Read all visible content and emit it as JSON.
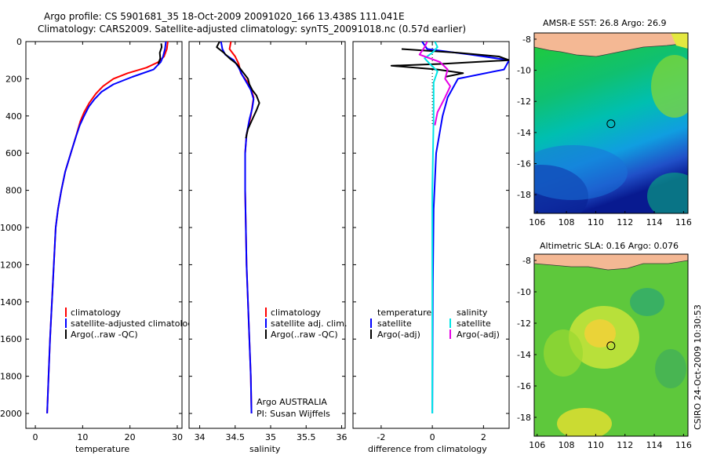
{
  "header": {
    "line1": "Argo profile: CS 5901681_35 18-Oct-2009 20091020_166 13.438S 111.041E",
    "line2": "Climatology: CARS2009. Satellite-adjusted climatology: synTS_20091018.nc (0.57d earlier)"
  },
  "footer_stamp": "CSIRO 24-Oct-2009 10:30:53",
  "colors": {
    "climatology": "#ff0000",
    "satellite": "#0000ff",
    "argo": "#000000",
    "sat_sal": "#00e5e5",
    "argo_sal": "#e600e6"
  },
  "chart_data": [
    {
      "type": "line",
      "id": "temperature",
      "xlabel": "temperature",
      "ylabel": "",
      "xlim": [
        -2,
        31
      ],
      "ylim": [
        2080,
        0
      ],
      "xticks": [
        "0",
        "10",
        "20",
        "30"
      ],
      "xtick_values": [
        0,
        10,
        20,
        30
      ],
      "yticks": [
        "0",
        "200",
        "400",
        "600",
        "800",
        "1000",
        "1200",
        "1400",
        "1600",
        "1800",
        "2000"
      ],
      "ytick_values": [
        0,
        200,
        400,
        600,
        800,
        1000,
        1200,
        1400,
        1600,
        1800,
        2000
      ],
      "legend": [
        "climatology",
        "satellite-adjusted climatology",
        "Argo(..raw -QC)"
      ],
      "series": [
        {
          "name": "climatology",
          "color": "#ff0000",
          "points": [
            [
              28.0,
              0
            ],
            [
              27.8,
              40
            ],
            [
              27.2,
              80
            ],
            [
              26.0,
              110
            ],
            [
              23.5,
              140
            ],
            [
              19.5,
              170
            ],
            [
              16.5,
              200
            ],
            [
              14.3,
              240
            ],
            [
              12.8,
              280
            ],
            [
              11.4,
              330
            ],
            [
              10.3,
              380
            ],
            [
              9.5,
              430
            ],
            [
              8.7,
              500
            ],
            [
              7.5,
              600
            ],
            [
              6.3,
              700
            ],
            [
              5.5,
              800
            ],
            [
              4.8,
              900
            ],
            [
              4.3,
              1000
            ],
            [
              3.9,
              1200
            ],
            [
              3.5,
              1400
            ],
            [
              3.1,
              1600
            ],
            [
              2.8,
              1800
            ],
            [
              2.5,
              2000
            ]
          ]
        },
        {
          "name": "satellite-adjusted climatology",
          "color": "#0000ff",
          "points": [
            [
              27.6,
              0
            ],
            [
              27.4,
              40
            ],
            [
              27.0,
              80
            ],
            [
              26.5,
              110
            ],
            [
              25.0,
              150
            ],
            [
              20.5,
              190
            ],
            [
              16.5,
              230
            ],
            [
              14.0,
              270
            ],
            [
              12.5,
              310
            ],
            [
              11.3,
              350
            ],
            [
              10.3,
              400
            ],
            [
              9.4,
              450
            ],
            [
              8.6,
              510
            ],
            [
              7.5,
              600
            ],
            [
              6.3,
              700
            ],
            [
              5.5,
              800
            ],
            [
              4.8,
              900
            ],
            [
              4.3,
              1000
            ],
            [
              3.9,
              1200
            ],
            [
              3.5,
              1400
            ],
            [
              3.1,
              1600
            ],
            [
              2.8,
              1800
            ],
            [
              2.5,
              2000
            ]
          ]
        },
        {
          "name": "Argo(..raw -QC)",
          "color": "#000000",
          "points": [
            [
              26.6,
              10
            ],
            [
              26.7,
              30
            ],
            [
              26.3,
              60
            ],
            [
              26.4,
              90
            ],
            [
              26.0,
              120
            ]
          ]
        }
      ]
    },
    {
      "type": "line",
      "id": "salinity",
      "xlabel": "salinity",
      "xlim": [
        33.85,
        36.05
      ],
      "ylim": [
        2080,
        0
      ],
      "xticks": [
        "34",
        "34.5",
        "35",
        "35.5",
        "36"
      ],
      "xtick_values": [
        34,
        34.5,
        35,
        35.5,
        36
      ],
      "legend": [
        "climatology",
        "satellite adj. clim.",
        "Argo(..raw -QC)"
      ],
      "annotations": [
        "Argo AUSTRALIA",
        "PI: Susan Wijffels"
      ],
      "series": [
        {
          "name": "climatology",
          "color": "#ff0000",
          "points": [
            [
              34.44,
              0
            ],
            [
              34.42,
              40
            ],
            [
              34.5,
              80
            ],
            [
              34.55,
              120
            ],
            [
              34.58,
              170
            ],
            [
              34.66,
              210
            ],
            [
              34.72,
              250
            ],
            [
              34.76,
              300
            ],
            [
              34.74,
              350
            ],
            [
              34.72,
              400
            ],
            [
              34.66,
              500
            ],
            [
              34.64,
              600
            ],
            [
              34.64,
              800
            ],
            [
              34.65,
              1000
            ],
            [
              34.66,
              1200
            ],
            [
              34.68,
              1400
            ],
            [
              34.7,
              1600
            ],
            [
              34.72,
              1800
            ],
            [
              34.73,
              2000
            ]
          ]
        },
        {
          "name": "satellite adj. clim.",
          "color": "#0000ff",
          "points": [
            [
              34.3,
              0
            ],
            [
              34.32,
              40
            ],
            [
              34.36,
              70
            ],
            [
              34.48,
              100
            ],
            [
              34.55,
              140
            ],
            [
              34.6,
              180
            ],
            [
              34.66,
              220
            ],
            [
              34.72,
              260
            ],
            [
              34.76,
              310
            ],
            [
              34.74,
              360
            ],
            [
              34.7,
              420
            ],
            [
              34.66,
              500
            ],
            [
              34.64,
              600
            ],
            [
              34.64,
              800
            ],
            [
              34.65,
              1000
            ],
            [
              34.66,
              1200
            ],
            [
              34.68,
              1400
            ],
            [
              34.7,
              1600
            ],
            [
              34.72,
              1800
            ],
            [
              34.73,
              2000
            ]
          ]
        },
        {
          "name": "Argo(..raw -QC)",
          "color": "#000000",
          "points": [
            [
              34.28,
              0
            ],
            [
              34.24,
              30
            ],
            [
              34.34,
              60
            ],
            [
              34.42,
              90
            ],
            [
              34.52,
              120
            ],
            [
              34.6,
              160
            ],
            [
              34.68,
              200
            ],
            [
              34.7,
              230
            ],
            [
              34.74,
              260
            ],
            [
              34.8,
              290
            ],
            [
              34.84,
              330
            ],
            [
              34.8,
              370
            ],
            [
              34.74,
              420
            ],
            [
              34.68,
              470
            ],
            [
              34.65,
              520
            ]
          ]
        }
      ]
    },
    {
      "type": "line",
      "id": "difference",
      "xlabel": "difference from climatology",
      "xlim": [
        -3.1,
        3.0
      ],
      "ylim": [
        2080,
        0
      ],
      "xticks": [
        "-2",
        "0",
        "2"
      ],
      "xtick_values": [
        -2,
        0,
        2
      ],
      "legend_headers": [
        "temperature",
        "salinity"
      ],
      "legend": [
        "satellite",
        "Argo(-adj)",
        "satellite",
        "Argo(-adj)"
      ],
      "series": [
        {
          "name": "temperature satellite",
          "color": "#0000ff",
          "points": [
            [
              -0.4,
              0
            ],
            [
              -0.2,
              40
            ],
            [
              1.5,
              70
            ],
            [
              3.0,
              100
            ],
            [
              2.8,
              150
            ],
            [
              1.0,
              200
            ],
            [
              0.6,
              300
            ],
            [
              0.4,
              400
            ],
            [
              0.15,
              600
            ],
            [
              0.05,
              900
            ],
            [
              0.02,
              1300
            ],
            [
              0.0,
              2000
            ]
          ]
        },
        {
          "name": "temperature Argo(-adj)",
          "color": "#000000",
          "points": [
            [
              -1.2,
              40
            ],
            [
              1.0,
              60
            ],
            [
              2.6,
              80
            ],
            [
              3.0,
              100
            ],
            [
              0.4,
              120
            ],
            [
              -1.6,
              130
            ],
            [
              0.2,
              150
            ],
            [
              1.2,
              170
            ],
            [
              0.5,
              190
            ]
          ]
        },
        {
          "name": "salinity satellite",
          "color": "#00e5e5",
          "points": [
            [
              0.1,
              0
            ],
            [
              0.2,
              30
            ],
            [
              0.0,
              60
            ],
            [
              -0.3,
              90
            ],
            [
              -0.1,
              120
            ],
            [
              0.2,
              160
            ],
            [
              0.05,
              220
            ],
            [
              0.05,
              400
            ],
            [
              0.0,
              800
            ],
            [
              0.0,
              1200
            ],
            [
              0.0,
              2000
            ]
          ]
        },
        {
          "name": "salinity Argo(-adj)",
          "color": "#e600e6",
          "points": [
            [
              -0.2,
              0
            ],
            [
              -0.3,
              30
            ],
            [
              -0.5,
              70
            ],
            [
              0.3,
              110
            ],
            [
              0.6,
              150
            ],
            [
              0.5,
              200
            ],
            [
              0.7,
              240
            ],
            [
              0.5,
              300
            ],
            [
              0.2,
              380
            ],
            [
              0.1,
              450
            ]
          ]
        }
      ]
    },
    {
      "type": "heatmap",
      "id": "sst_map",
      "title": "AMSR-E SST: 26.8 Argo: 26.9",
      "xlim": [
        105.8,
        116.3
      ],
      "ylim": [
        -19.2,
        -7.6
      ],
      "xticks": [
        "106",
        "108",
        "110",
        "112",
        "114",
        "116"
      ],
      "xtick_values": [
        106,
        108,
        110,
        112,
        114,
        116
      ],
      "yticks": [
        "-8",
        "-10",
        "-12",
        "-14",
        "-16",
        "-18"
      ],
      "ytick_values": [
        -8,
        -10,
        -12,
        -14,
        -16,
        -18
      ],
      "marker": {
        "lon": 111.041,
        "lat": -13.438
      }
    },
    {
      "type": "heatmap",
      "id": "sla_map",
      "title": "Altimetric SLA: 0.16 Argo: 0.076",
      "xlim": [
        105.8,
        116.3
      ],
      "ylim": [
        -19.2,
        -7.6
      ],
      "xticks": [
        "106",
        "108",
        "110",
        "112",
        "114",
        "116"
      ],
      "xtick_values": [
        106,
        108,
        110,
        112,
        114,
        116
      ],
      "yticks": [
        "-8",
        "-10",
        "-12",
        "-14",
        "-16",
        "-18"
      ],
      "ytick_values": [
        -8,
        -10,
        -12,
        -14,
        -16,
        -18
      ],
      "marker": {
        "lon": 111.041,
        "lat": -13.438
      }
    }
  ]
}
